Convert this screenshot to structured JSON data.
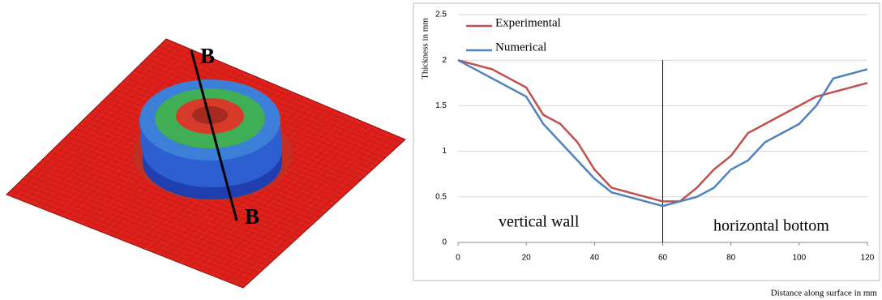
{
  "chart_data": {
    "type": "line",
    "x": [
      0,
      10,
      20,
      25,
      30,
      35,
      40,
      45,
      50,
      55,
      60,
      65,
      70,
      75,
      80,
      85,
      90,
      100,
      105,
      110,
      120
    ],
    "series": [
      {
        "name": "Experimental",
        "color": "#c0504d",
        "values": [
          2,
          1.9,
          1.7,
          1.4,
          1.3,
          1.1,
          0.8,
          0.6,
          0.55,
          0.5,
          0.45,
          0.45,
          0.6,
          0.8,
          0.95,
          1.2,
          1.3,
          1.5,
          1.6,
          1.65,
          1.75
        ]
      },
      {
        "name": "Numerical",
        "color": "#4f81bd",
        "values": [
          2,
          1.8,
          1.6,
          1.3,
          1.1,
          0.9,
          0.7,
          0.55,
          0.5,
          0.45,
          0.4,
          0.45,
          0.5,
          0.6,
          0.8,
          0.9,
          1.1,
          1.3,
          1.5,
          1.8,
          1.9
        ]
      }
    ],
    "xlim": [
      0,
      120
    ],
    "xticks": [
      0,
      20,
      40,
      60,
      80,
      100,
      120
    ],
    "ylim": [
      0,
      2.5
    ],
    "yticks": [
      0,
      0.5,
      1,
      1.5,
      2,
      2.5
    ],
    "grid": true,
    "legend": "top-left",
    "x_label": "Distance along surface in mm",
    "y_label": "Thickness in mm",
    "annotations": [
      "vertical wall",
      "horizontal bottom"
    ],
    "divider": {
      "x": 60,
      "y": [
        0,
        2
      ]
    }
  },
  "illustration": {
    "section_labels": [
      "B",
      "B"
    ]
  }
}
